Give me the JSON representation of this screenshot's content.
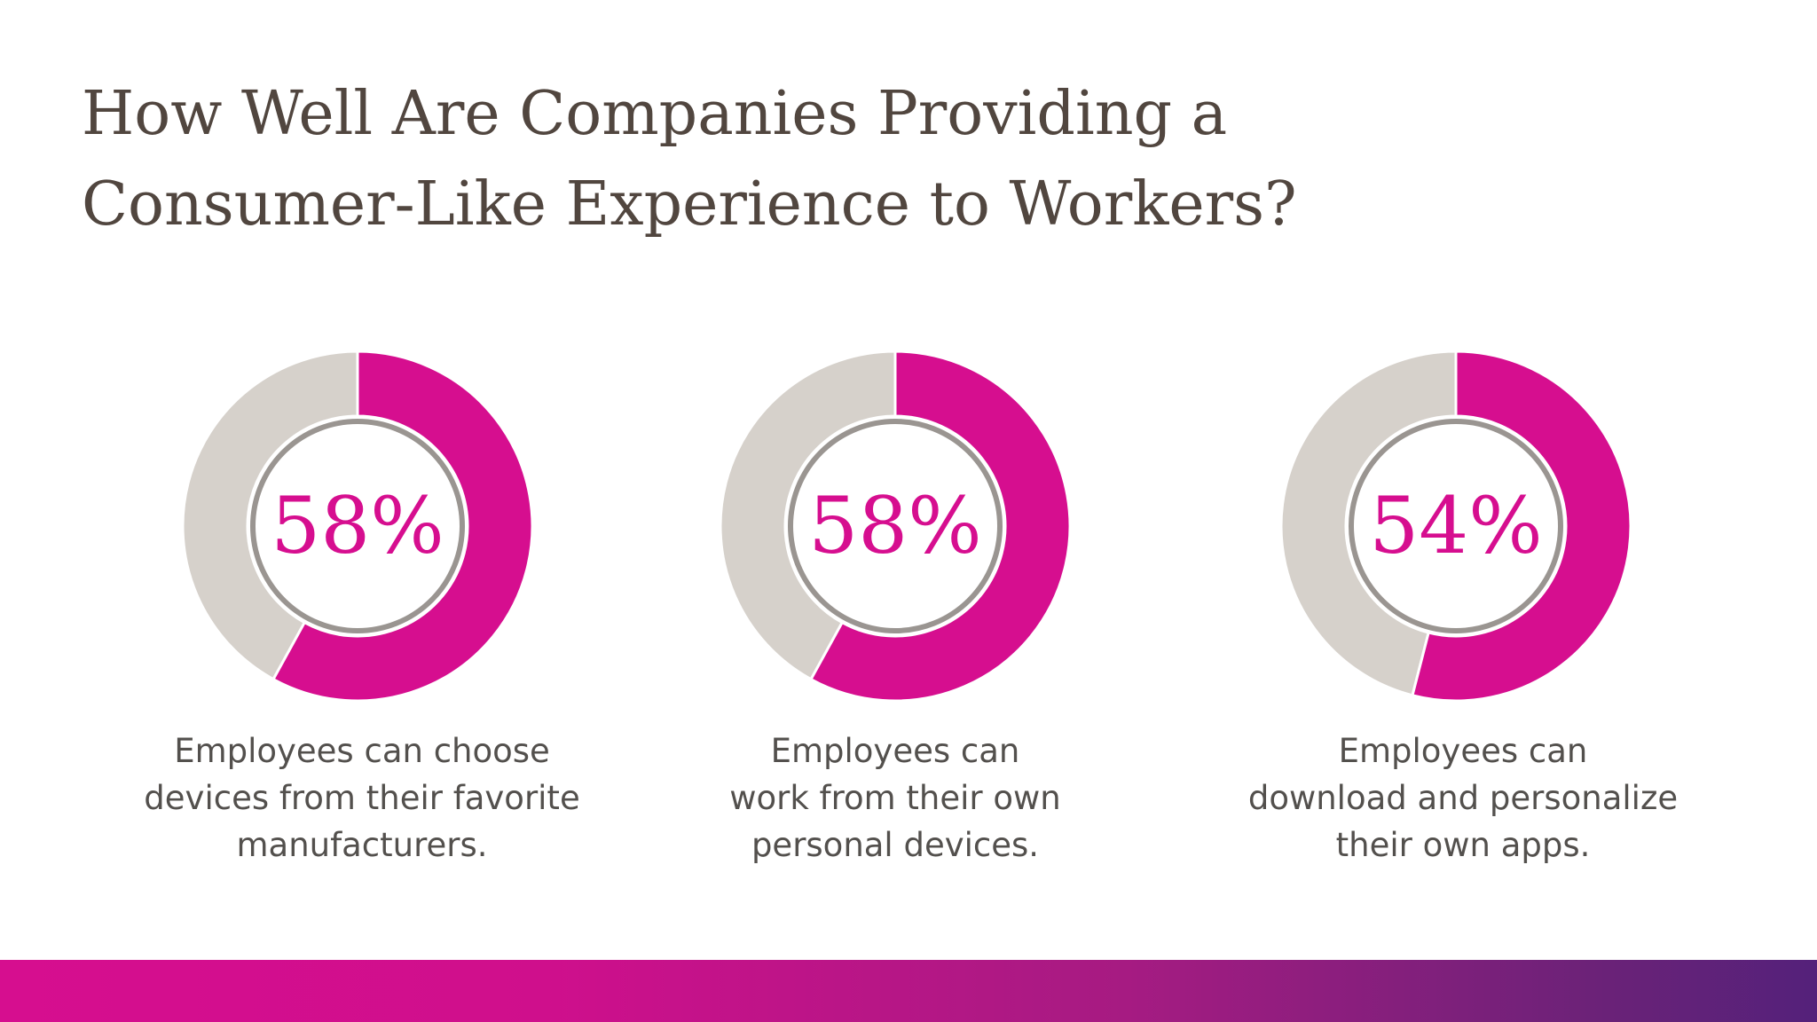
{
  "title": {
    "line1": "How Well Are Companies Providing a",
    "line2": "Consumer-Like Experience to Workers?"
  },
  "colors": {
    "accent": "#d60e8f",
    "remainder": "#d6d1cb",
    "ring": "#9a9591",
    "title": "#51463f",
    "caption": "#53504d"
  },
  "chart_data": [
    {
      "type": "pie",
      "style": "donut",
      "label": "58%",
      "value": 58,
      "max": 100,
      "caption": [
        "Employees can choose",
        "devices from their favorite",
        "manufacturers."
      ]
    },
    {
      "type": "pie",
      "style": "donut",
      "label": "58%",
      "value": 58,
      "max": 100,
      "caption": [
        "Employees can",
        "work from their own",
        "personal devices."
      ]
    },
    {
      "type": "pie",
      "style": "donut",
      "label": "54%",
      "value": 54,
      "max": 100,
      "caption": [
        "Employees can",
        "download and personalize",
        "their own apps."
      ]
    }
  ]
}
